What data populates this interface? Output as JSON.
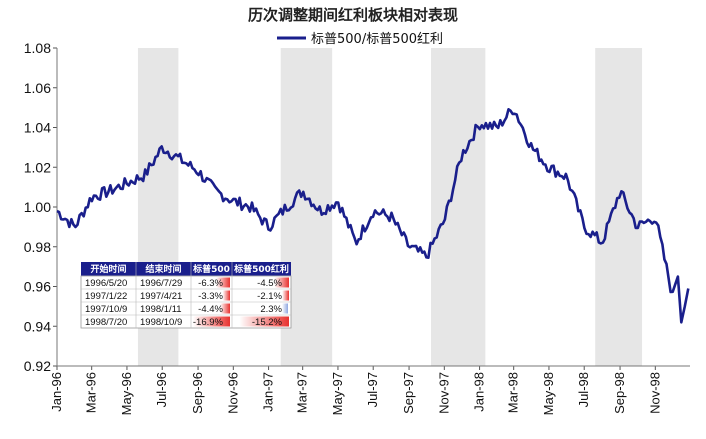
{
  "chart_data": {
    "type": "line",
    "title": "历次调整期间红利板块相对表现",
    "series": [
      {
        "name": "标普500/标普500红利",
        "color": "#1a1f8c",
        "x": [
          "1996-01",
          "1996-02",
          "1996-03",
          "1996-04",
          "1996-05",
          "1996-06",
          "1996-07",
          "1996-08",
          "1996-09",
          "1996-10",
          "1996-11",
          "1996-12",
          "1997-01",
          "1997-02",
          "1997-03",
          "1997-04",
          "1997-05",
          "1997-06",
          "1997-07",
          "1997-08",
          "1997-09",
          "1997-10",
          "1997-11",
          "1997-12",
          "1998-01",
          "1998-02",
          "1998-03",
          "1998-04",
          "1998-05",
          "1998-06",
          "1998-07",
          "1998-08",
          "1998-09",
          "1998-10",
          "1998-11",
          "1998-12"
        ],
        "values": [
          0.998,
          0.99,
          1.005,
          1.008,
          1.012,
          1.016,
          1.03,
          1.024,
          1.018,
          1.008,
          1.003,
          1.0,
          0.99,
          1.0,
          1.008,
          0.998,
          1.003,
          0.982,
          0.998,
          0.995,
          0.98,
          0.975,
          0.993,
          1.026,
          1.042,
          1.04,
          1.05,
          1.03,
          1.02,
          1.015,
          0.99,
          0.982,
          1.008,
          0.99,
          0.995,
          0.955
        ]
      }
    ],
    "yticks": [
      "0.92",
      "0.94",
      "0.96",
      "0.98",
      "1.00",
      "1.02",
      "1.04",
      "1.06",
      "1.08"
    ],
    "ylim": [
      0.92,
      1.08
    ],
    "xticks": [
      "Jan-96",
      "Mar-96",
      "May-96",
      "Jul-96",
      "Sep-96",
      "Nov-96",
      "Jan-97",
      "Mar-97",
      "May-97",
      "Jul-97",
      "Sep-97",
      "Nov-97",
      "Jan-98",
      "Mar-98",
      "May-98",
      "Jul-98",
      "Sep-98",
      "Nov-98"
    ],
    "shaded_periods": [
      {
        "start": "1996-05-20",
        "end": "1996-07-29"
      },
      {
        "start": "1997-01-22",
        "end": "1997-04-21"
      },
      {
        "start": "1997-10-09",
        "end": "1998-01-11"
      },
      {
        "start": "1998-07-20",
        "end": "1998-10-09"
      }
    ],
    "shade_color": "#e6e6e6",
    "legend_position": "top-center",
    "table": {
      "headers": [
        "开始时间",
        "结束时间",
        "标普500",
        "标普500红利"
      ],
      "header_color": "#1a1f8c",
      "rows": [
        {
          "start": "1996/5/20",
          "end": "1996/7/29",
          "sp500": "-6.3%",
          "sp500_value": -6.3,
          "dividend": "-4.5%",
          "dividend_value": -4.5
        },
        {
          "start": "1997/1/22",
          "end": "1997/4/21",
          "sp500": "-3.3%",
          "sp500_value": -3.3,
          "dividend": "-2.1%",
          "dividend_value": -2.1
        },
        {
          "start": "1997/10/9",
          "end": "1998/1/11",
          "sp500": "-4.4%",
          "sp500_value": -4.4,
          "dividend": "2.3%",
          "dividend_value": 2.3
        },
        {
          "start": "1998/7/20",
          "end": "1998/10/9",
          "sp500": "-16.9%",
          "sp500_value": -16.9,
          "dividend": "-15.2%",
          "dividend_value": -15.2
        }
      ],
      "negative_color": "#e8322f",
      "positive_color": "#8fa7e0"
    }
  }
}
